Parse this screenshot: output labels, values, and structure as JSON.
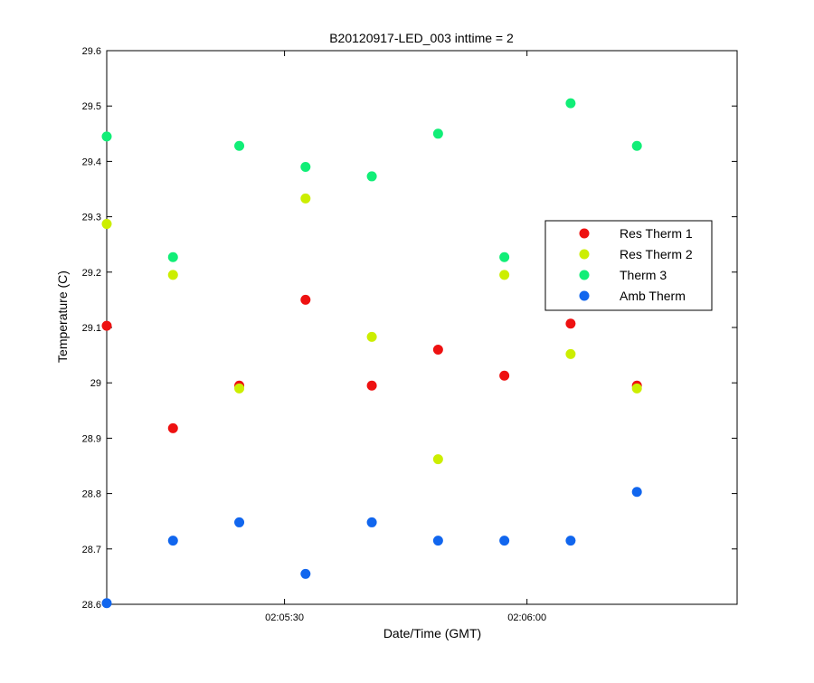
{
  "chart_data": {
    "type": "scatter",
    "title": "B20120917-LED_003 inttime = 2",
    "xlabel": "Date/Time (GMT)",
    "ylabel": "Temperature (C)",
    "xlim_seconds": [
      0,
      78
    ],
    "x_ticks": [
      {
        "value": 22,
        "label": "02:05:30"
      },
      {
        "value": 52,
        "label": "02:06:00"
      }
    ],
    "ylim": [
      28.6,
      29.6
    ],
    "y_ticks": [
      28.6,
      28.7,
      28.8,
      28.9,
      29,
      29.1,
      29.2,
      29.3,
      29.4,
      29.5,
      29.6
    ],
    "grid": false,
    "legend_position": "right",
    "x": [
      0,
      8.2,
      16.4,
      24.6,
      32.8,
      41,
      49.2,
      57.4,
      65.6
    ],
    "series": [
      {
        "name": "Res Therm 1",
        "color": "#ee1111",
        "values": [
          29.103,
          28.918,
          28.995,
          29.15,
          28.995,
          29.06,
          29.013,
          29.107,
          28.995
        ]
      },
      {
        "name": "Res Therm 2",
        "color": "#ccee00",
        "values": [
          29.287,
          29.195,
          28.99,
          29.333,
          29.083,
          28.862,
          29.195,
          29.052,
          28.99
        ]
      },
      {
        "name": "Therm 3",
        "color": "#11ee77",
        "values": [
          29.445,
          29.227,
          29.428,
          29.39,
          29.373,
          29.45,
          29.227,
          29.505,
          29.428
        ]
      },
      {
        "name": "Amb Therm",
        "color": "#1166ee",
        "values": [
          28.602,
          28.715,
          28.748,
          28.655,
          28.748,
          28.715,
          28.715,
          28.715,
          28.803
        ]
      }
    ]
  }
}
